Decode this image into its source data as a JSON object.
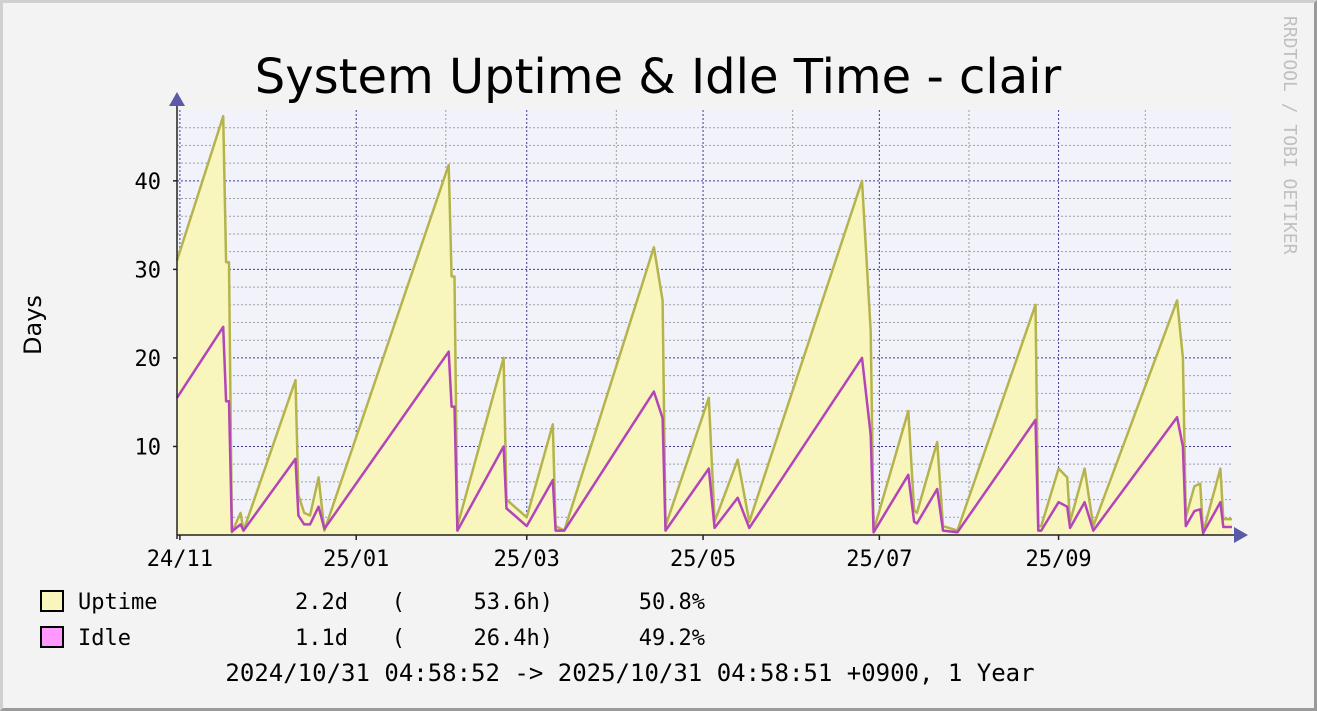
{
  "chart_data": {
    "type": "area",
    "title": "System Uptime & Idle Time - clair",
    "ylabel": "Days",
    "watermark": "RRDTOOL / TOBI OETIKER",
    "x_range": [
      "2024-10-31",
      "2025-10-31"
    ],
    "ylim": [
      0,
      48
    ],
    "y_ticks": [
      10,
      20,
      30,
      40
    ],
    "y_tick_labels": [
      "10",
      "20",
      "30",
      "40"
    ],
    "x_ticks": [
      {
        "date": "2024-11-01",
        "label": "24/11"
      },
      {
        "date": "2025-01-01",
        "label": "25/01"
      },
      {
        "date": "2025-03-01",
        "label": "25/03"
      },
      {
        "date": "2025-05-01",
        "label": "25/05"
      },
      {
        "date": "2025-07-01",
        "label": "25/07"
      },
      {
        "date": "2025-09-01",
        "label": "25/09"
      }
    ],
    "x_minor_ticks": [
      "2024-12-01",
      "2025-02-01",
      "2025-04-01",
      "2025-06-01",
      "2025-08-01",
      "2025-10-01"
    ],
    "colors": {
      "background": "#f3f3f3",
      "plot_background": "#f2f3fa",
      "uptime_fill": "#f8f6bc",
      "uptime_line": "#b5b44c",
      "idle_line": "#b444b9",
      "idle_swatch": "#ff99ff",
      "major_grid": "#3c3c96",
      "minor_grid": "#a0a0a0",
      "axis": "#222222",
      "arrow": "#5a5aa6",
      "watermark": "#c0c0c0"
    },
    "series": [
      {
        "name": "Uptime",
        "stat_current": "2.2d",
        "stat_hours": "53.6h",
        "stat_pct": "50.8%",
        "points": [
          [
            "2024-10-31",
            31
          ],
          [
            "2024-11-16",
            47.3
          ],
          [
            "2024-11-17",
            30.8
          ],
          [
            "2024-11-18",
            30.8
          ],
          [
            "2024-11-19",
            0.3
          ],
          [
            "2024-11-22",
            2.5
          ],
          [
            "2024-11-23",
            0.5
          ],
          [
            "2024-12-11",
            17.5
          ],
          [
            "2024-12-12",
            4.5
          ],
          [
            "2024-12-14",
            2.5
          ],
          [
            "2024-12-16",
            2.2
          ],
          [
            "2024-12-19",
            6.5
          ],
          [
            "2024-12-21",
            0.5
          ],
          [
            "2025-02-02",
            41.8
          ],
          [
            "2025-02-03",
            29.2
          ],
          [
            "2025-02-04",
            29.2
          ],
          [
            "2025-02-05",
            1.0
          ],
          [
            "2025-02-21",
            20.0
          ],
          [
            "2025-02-22",
            4.0
          ],
          [
            "2025-03-01",
            2.0
          ],
          [
            "2025-03-10",
            12.5
          ],
          [
            "2025-03-11",
            1.0
          ],
          [
            "2025-03-14",
            0.5
          ],
          [
            "2025-04-14",
            32.5
          ],
          [
            "2025-04-17",
            26.5
          ],
          [
            "2025-04-18",
            1.0
          ],
          [
            "2025-05-03",
            15.5
          ],
          [
            "2025-05-05",
            1.5
          ],
          [
            "2025-05-13",
            8.5
          ],
          [
            "2025-05-17",
            1.5
          ],
          [
            "2025-06-25",
            40.0
          ],
          [
            "2025-06-28",
            23.0
          ],
          [
            "2025-06-29",
            0.5
          ],
          [
            "2025-07-11",
            14.0
          ],
          [
            "2025-07-13",
            2.8
          ],
          [
            "2025-07-14",
            2.5
          ],
          [
            "2025-07-21",
            10.5
          ],
          [
            "2025-07-23",
            1.0
          ],
          [
            "2025-07-28",
            0.5
          ],
          [
            "2025-08-24",
            26.0
          ],
          [
            "2025-08-25",
            1.0
          ],
          [
            "2025-08-26",
            1.0
          ],
          [
            "2025-09-01",
            7.5
          ],
          [
            "2025-09-04",
            6.5
          ],
          [
            "2025-09-05",
            1.5
          ],
          [
            "2025-09-10",
            7.5
          ],
          [
            "2025-09-13",
            1.0
          ],
          [
            "2025-10-12",
            26.5
          ],
          [
            "2025-10-14",
            20.0
          ],
          [
            "2025-10-15",
            2.0
          ],
          [
            "2025-10-18",
            5.5
          ],
          [
            "2025-10-20",
            5.8
          ],
          [
            "2025-10-21",
            0.3
          ],
          [
            "2025-10-27",
            7.5
          ],
          [
            "2025-10-28",
            1.8
          ],
          [
            "2025-10-31",
            1.8
          ]
        ]
      },
      {
        "name": "Idle",
        "stat_current": "1.1d",
        "stat_hours": "26.4h",
        "stat_pct": "49.2%",
        "points": [
          [
            "2024-10-31",
            15.5
          ],
          [
            "2024-11-16",
            23.5
          ],
          [
            "2024-11-17",
            15.1
          ],
          [
            "2024-11-18",
            15.1
          ],
          [
            "2024-11-19",
            0.4
          ],
          [
            "2024-11-22",
            1.2
          ],
          [
            "2024-11-23",
            0.5
          ],
          [
            "2024-12-11",
            8.6
          ],
          [
            "2024-12-12",
            2.2
          ],
          [
            "2024-12-14",
            1.2
          ],
          [
            "2024-12-16",
            1.2
          ],
          [
            "2024-12-19",
            3.2
          ],
          [
            "2024-12-21",
            0.7
          ],
          [
            "2025-02-02",
            20.7
          ],
          [
            "2025-02-03",
            14.5
          ],
          [
            "2025-02-04",
            14.5
          ],
          [
            "2025-02-05",
            0.5
          ],
          [
            "2025-02-21",
            10.0
          ],
          [
            "2025-02-22",
            3.0
          ],
          [
            "2025-03-01",
            1.0
          ],
          [
            "2025-03-10",
            6.2
          ],
          [
            "2025-03-11",
            0.5
          ],
          [
            "2025-03-14",
            0.5
          ],
          [
            "2025-04-14",
            16.2
          ],
          [
            "2025-04-17",
            13.2
          ],
          [
            "2025-04-18",
            0.5
          ],
          [
            "2025-05-03",
            7.5
          ],
          [
            "2025-05-05",
            0.8
          ],
          [
            "2025-05-13",
            4.2
          ],
          [
            "2025-05-17",
            0.8
          ],
          [
            "2025-06-25",
            20.0
          ],
          [
            "2025-06-28",
            11.3
          ],
          [
            "2025-06-29",
            0.3
          ],
          [
            "2025-07-11",
            6.8
          ],
          [
            "2025-07-13",
            1.5
          ],
          [
            "2025-07-14",
            1.3
          ],
          [
            "2025-07-21",
            5.2
          ],
          [
            "2025-07-23",
            0.5
          ],
          [
            "2025-07-28",
            0.3
          ],
          [
            "2025-08-24",
            13.0
          ],
          [
            "2025-08-25",
            0.5
          ],
          [
            "2025-08-26",
            0.5
          ],
          [
            "2025-09-01",
            3.7
          ],
          [
            "2025-09-04",
            3.2
          ],
          [
            "2025-09-05",
            0.8
          ],
          [
            "2025-09-10",
            3.7
          ],
          [
            "2025-09-13",
            0.5
          ],
          [
            "2025-10-12",
            13.3
          ],
          [
            "2025-10-14",
            10.0
          ],
          [
            "2025-10-15",
            1.0
          ],
          [
            "2025-10-18",
            2.7
          ],
          [
            "2025-10-20",
            2.9
          ],
          [
            "2025-10-21",
            0.2
          ],
          [
            "2025-10-27",
            3.7
          ],
          [
            "2025-10-28",
            0.9
          ],
          [
            "2025-10-31",
            0.9
          ]
        ]
      }
    ],
    "legend": {
      "position": "bottom-left",
      "rows": [
        {
          "name": "Uptime",
          "current": "2.2d",
          "open_paren": "(",
          "hours": "53.6h)",
          "pct": "50.8%"
        },
        {
          "name": "Idle",
          "current": "1.1d",
          "open_paren": "(",
          "hours": "26.4h)",
          "pct": "49.2%"
        }
      ]
    },
    "footer": "2024/10/31 04:58:52 -> 2025/10/31 04:58:51 +0900, 1 Year"
  }
}
